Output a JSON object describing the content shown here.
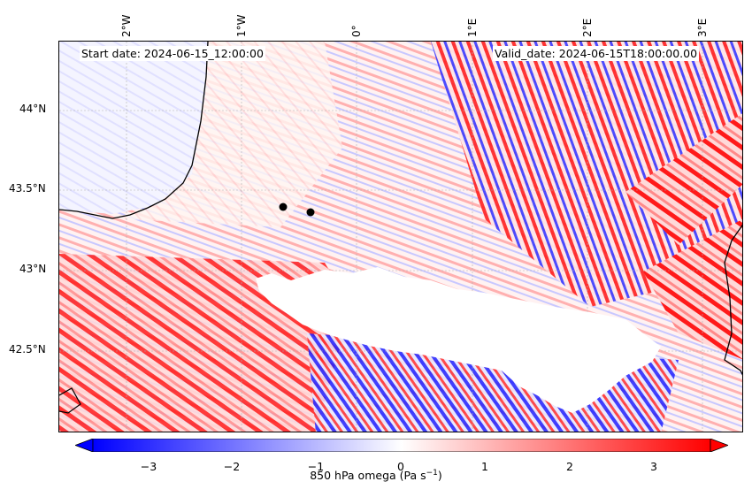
{
  "map": {
    "start_date": "Start date: 2024-06-15_12:00:00",
    "valid_date": "Valid_date: 2024-06-15T18:00:00.00",
    "lon_ticks": [
      "2°W",
      "1°W",
      "0°",
      "1°E",
      "2°E",
      "3°E"
    ],
    "lat_ticks": [
      "44°N",
      "43.5°N",
      "43°N",
      "42.5°N"
    ],
    "field": "850 hPa omega",
    "colormap": [
      "#0000ff",
      "#ffffff",
      "#ff0000"
    ],
    "markers": [
      {
        "name": "point-1",
        "color": "#000000"
      },
      {
        "name": "point-2",
        "color": "#000000"
      }
    ],
    "masked_color": "#ffffff"
  },
  "colorbar": {
    "ticks": [
      "−3",
      "−2",
      "−1",
      "0",
      "1",
      "2",
      "3"
    ],
    "label_main": "850 hPa omega (Pa s",
    "label_sup": "−1",
    "label_end": ")",
    "range": [
      -3.5,
      3.5
    ],
    "extend": "both"
  }
}
